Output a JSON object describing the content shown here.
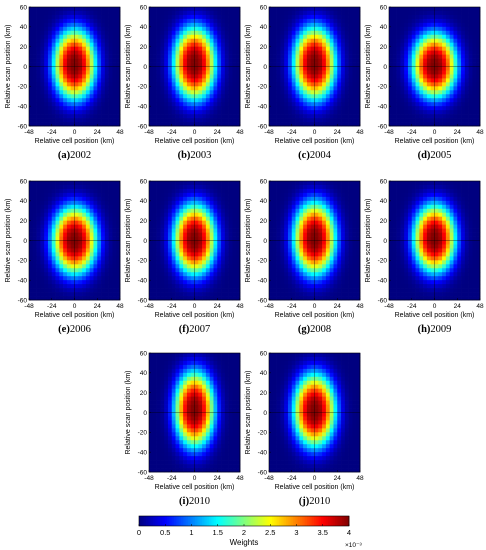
{
  "chart_data": {
    "type": "heatmap",
    "colormap": "jet",
    "shared_axes": {
      "xlabel": "Relative cell position (km)",
      "ylabel": "Relative scan position (km)",
      "xlim": [
        -48,
        48
      ],
      "ylim": [
        -60,
        60
      ],
      "xticks": [
        "-48",
        "-24",
        "0",
        "24",
        "48"
      ],
      "yticks": [
        "60",
        "40",
        "20",
        "0",
        "-20",
        "-40",
        "-60"
      ],
      "crosshair_at_origin": true
    },
    "panels": [
      {
        "label": "(a)",
        "year": "2002",
        "peak": 4.0,
        "sigma_x_km": 17,
        "sigma_y_km": 27,
        "center_y_km": 2
      },
      {
        "label": "(b)",
        "year": "2003",
        "peak": 4.0,
        "sigma_x_km": 17,
        "sigma_y_km": 28,
        "center_y_km": 3
      },
      {
        "label": "(c)",
        "year": "2004",
        "peak": 4.0,
        "sigma_x_km": 17,
        "sigma_y_km": 28,
        "center_y_km": 3
      },
      {
        "label": "(d)",
        "year": "2005",
        "peak": 4.0,
        "sigma_x_km": 18,
        "sigma_y_km": 25,
        "center_y_km": 1
      },
      {
        "label": "(e)",
        "year": "2006",
        "peak": 4.0,
        "sigma_x_km": 18,
        "sigma_y_km": 26,
        "center_y_km": 0
      },
      {
        "label": "(f)",
        "year": "2007",
        "peak": 4.0,
        "sigma_x_km": 17,
        "sigma_y_km": 27,
        "center_y_km": 1
      },
      {
        "label": "(g)",
        "year": "2008",
        "peak": 4.0,
        "sigma_x_km": 17,
        "sigma_y_km": 28,
        "center_y_km": 2
      },
      {
        "label": "(h)",
        "year": "2009",
        "peak": 4.0,
        "sigma_x_km": 17,
        "sigma_y_km": 26,
        "center_y_km": 2
      },
      {
        "label": "(i)",
        "year": "2010",
        "peak": 4.0,
        "sigma_x_km": 16,
        "sigma_y_km": 29,
        "center_y_km": 3
      },
      {
        "label": "(j)",
        "year": "2010",
        "peak": 4.0,
        "sigma_x_km": 17,
        "sigma_y_km": 28,
        "center_y_km": 2
      }
    ],
    "colorbar": {
      "label": "Weights",
      "range": [
        0,
        4
      ],
      "ticks": [
        "0",
        "0.5",
        "1",
        "1.5",
        "2",
        "2.5",
        "3",
        "3.5",
        "4"
      ],
      "multiplier": "×10⁻³"
    }
  }
}
